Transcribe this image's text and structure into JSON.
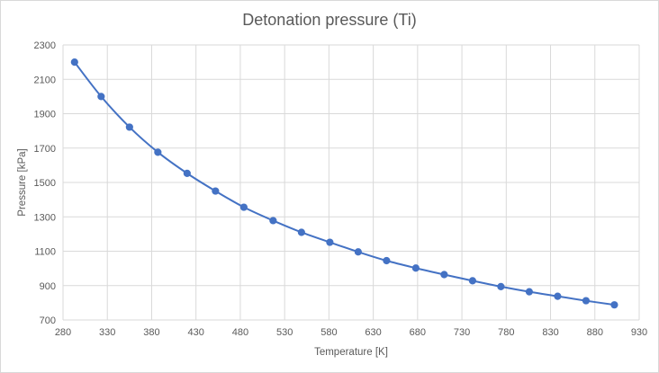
{
  "chart_data": {
    "type": "scatter",
    "title": "Detonation pressure (Ti)",
    "xlabel": "Temperature  [K]",
    "ylabel": "Pressure [kPa]",
    "xlim": [
      280,
      930
    ],
    "ylim": [
      700,
      2300
    ],
    "xticks": [
      280,
      330,
      380,
      430,
      480,
      530,
      580,
      630,
      680,
      730,
      780,
      830,
      880,
      930
    ],
    "yticks": [
      700,
      900,
      1100,
      1300,
      1500,
      1700,
      1900,
      2100,
      2300
    ],
    "grid": true,
    "smooth_line": true,
    "series": [
      {
        "x": [
          293,
          323,
          355,
          387,
          420,
          452,
          484,
          517,
          549,
          581,
          613,
          645,
          678,
          710,
          742,
          774,
          806,
          838,
          870,
          902
        ],
        "y": [
          2200,
          2000,
          1822,
          1676,
          1553,
          1450,
          1356,
          1278,
          1210,
          1152,
          1096,
          1045,
          1002,
          964,
          928,
          894,
          864,
          838,
          812,
          788
        ],
        "color": "#4472c4"
      }
    ]
  }
}
